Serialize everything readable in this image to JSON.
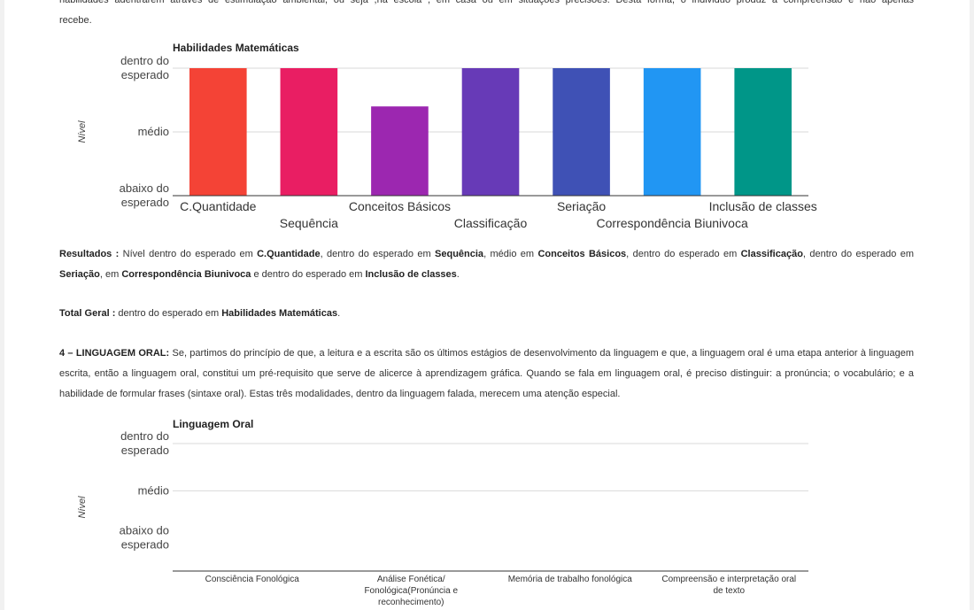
{
  "document": {
    "intro_top": "habilidades adentrarem através de estimulação ambiental, ou seja ,na escola , em casa ou em situações precisões. Desta forma, o individuo produz a compreensão e não apenas",
    "intro_bottom": "recebe.",
    "resultados": {
      "label": "Resultados :",
      "segments": [
        {
          "t": " Nível dentro do esperado em ",
          "b": false
        },
        {
          "t": "C.Quantidade",
          "b": true
        },
        {
          "t": ", dentro do esperado em ",
          "b": false
        },
        {
          "t": "Sequência",
          "b": true
        },
        {
          "t": ", médio em ",
          "b": false
        },
        {
          "t": "Conceitos Básicos",
          "b": true
        },
        {
          "t": ", dentro do esperado em ",
          "b": false
        },
        {
          "t": "Classificação",
          "b": true
        },
        {
          "t": ", dentro do esperado em ",
          "b": false
        },
        {
          "t": "Seriação",
          "b": true
        },
        {
          "t": ", em ",
          "b": false
        },
        {
          "t": "Correspondência Biunivoca",
          "b": true
        },
        {
          "t": " e dentro do esperado em ",
          "b": false
        },
        {
          "t": "Inclusão de classes",
          "b": true
        },
        {
          "t": ".",
          "b": false
        }
      ]
    },
    "total_geral": {
      "label": "Total Geral :",
      "segments": [
        {
          "t": " dentro do esperado em ",
          "b": false
        },
        {
          "t": "Habilidades Matemáticas",
          "b": true
        },
        {
          "t": ".",
          "b": false
        }
      ]
    },
    "linguagem_oral": {
      "label": "4 – LINGUAGEM ORAL:",
      "text": " Se, partimos do princípio de que, a leitura e a escrita são os últimos estágios de desenvolvimento da linguagem e que, a linguagem oral é uma etapa anterior à linguagem escrita, então a linguagem oral, constitui um pré-requisito que serve de alicerce à aprendizagem gráfica. Quando se fala em linguagem oral, é preciso distinguir: a pronúncia; o vocabulário; e a habilidade de formular frases (sintaxe oral). Estas três modalidades, dentro da linguagem falada, merecem uma atenção especial."
    }
  },
  "chart_data": [
    {
      "type": "bar",
      "title": "Habilidades Matemáticas",
      "ylabel": "Nível",
      "levels": [
        "abaixo do esperado",
        "médio",
        "dentro do esperado"
      ],
      "level_labels": [
        [
          "abaixo do",
          "esperado"
        ],
        [
          "médio"
        ],
        [
          "dentro do",
          "esperado"
        ]
      ],
      "ylim": [
        0,
        2
      ],
      "categories": [
        "C.Quantidade",
        "Sequência",
        "Conceitos Básicos",
        "Classificação",
        "Seriação",
        "Correspondência Biunivoca",
        "Inclusão de classes"
      ],
      "values": [
        2,
        2,
        1.4,
        2,
        2,
        2,
        2
      ],
      "colors": [
        "#f44336",
        "#e91e63",
        "#9c27b0",
        "#673ab7",
        "#3f51b5",
        "#2196f3",
        "#009688"
      ],
      "grid": true,
      "legend": "none"
    },
    {
      "type": "bar",
      "title": "Linguagem Oral",
      "ylabel": "Nível",
      "levels": [
        "abaixo do esperado",
        "médio",
        "dentro do esperado"
      ],
      "level_labels": [
        [
          "abaixo do",
          "esperado"
        ],
        [
          "médio"
        ],
        [
          "dentro do",
          "esperado"
        ]
      ],
      "ylim": [
        -0.7,
        2
      ],
      "categories": [
        "Consciência Fonológica",
        "Análise Fonética/ Fonológica(Pronúncia e reconhecimento)",
        "Memória de trabalho fonológica",
        "Compreensão e interpretação oral de texto"
      ],
      "category_labels": [
        [
          "Consciência Fonológica"
        ],
        [
          "Análise Fonética/",
          "Fonológica(Pronúncia e",
          "reconhecimento)"
        ],
        [
          "Memória de trabalho fonológica"
        ],
        [
          "Compreensão e interpretação oral",
          "de texto"
        ]
      ],
      "values": [
        0,
        0,
        0,
        0
      ],
      "colors": [
        "#f44336",
        "#e91e63",
        "#9c27b0",
        "#673ab7"
      ],
      "grid": true,
      "legend": "none"
    }
  ]
}
